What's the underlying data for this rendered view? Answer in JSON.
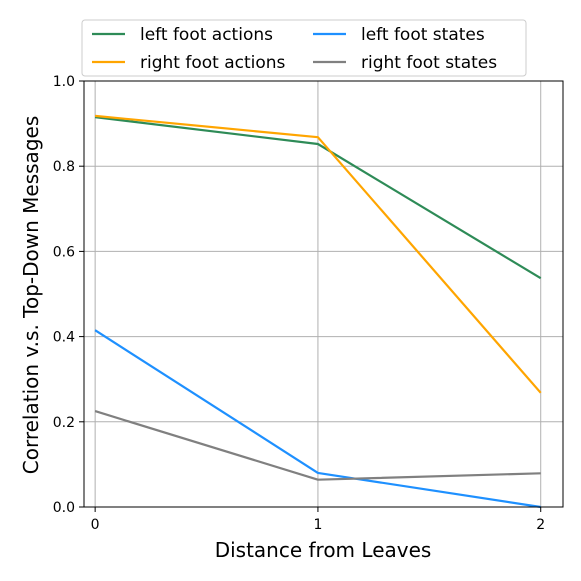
{
  "chart_data": {
    "type": "line",
    "xlabel": "Distance from Leaves",
    "ylabel": "Correlation v.s. Top-Down Messages",
    "x": [
      0,
      1,
      2
    ],
    "xticks": [
      "0",
      "1",
      "2"
    ],
    "yticks": [
      "0.0",
      "0.2",
      "0.4",
      "0.6",
      "0.8",
      "1.0"
    ],
    "xlim": [
      -0.05,
      2.1
    ],
    "ylim": [
      0,
      1.0
    ],
    "grid": true,
    "legend_position": "top",
    "series": [
      {
        "name": "left foot actions",
        "color": "#2e8b57",
        "values": [
          0.915,
          0.852,
          0.537
        ]
      },
      {
        "name": "right foot actions",
        "color": "#ffa500",
        "values": [
          0.918,
          0.868,
          0.268
        ]
      },
      {
        "name": "left foot states",
        "color": "#1e90ff",
        "values": [
          0.415,
          0.08,
          0.0
        ]
      },
      {
        "name": "right foot states",
        "color": "#808080",
        "values": [
          0.225,
          0.064,
          0.079
        ]
      }
    ]
  }
}
